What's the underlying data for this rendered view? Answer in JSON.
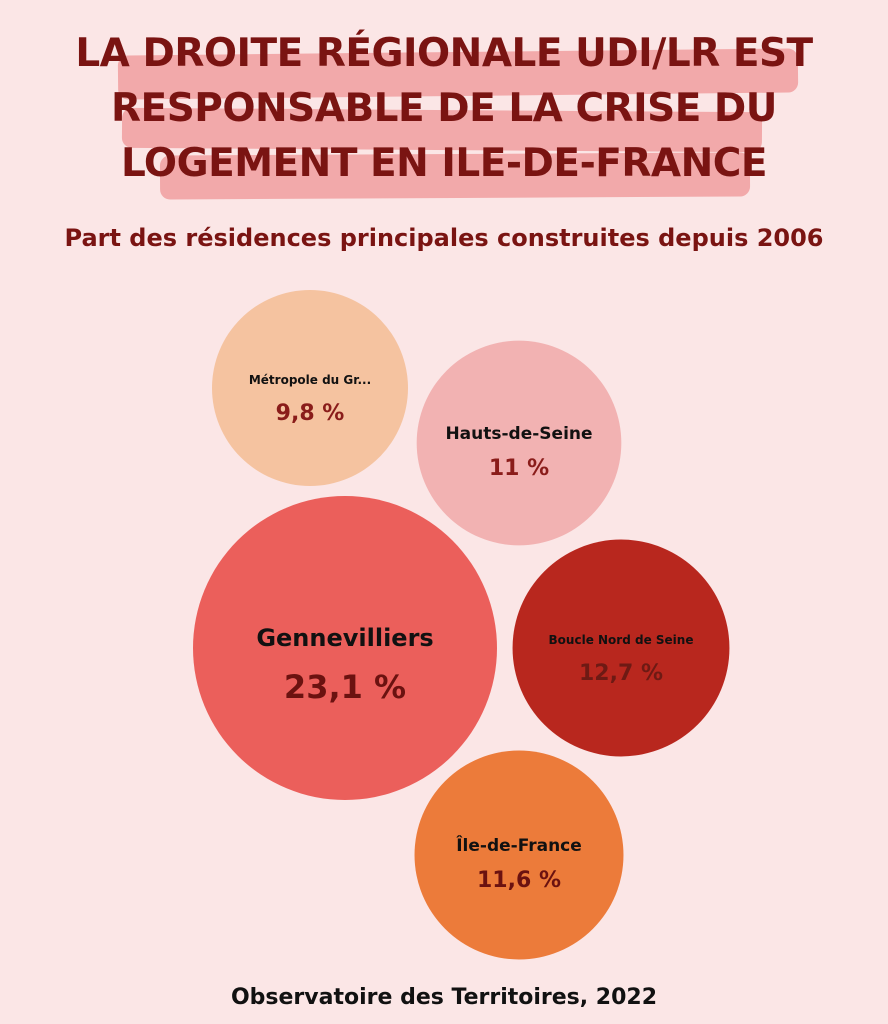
{
  "chart_data": {
    "type": "bubble",
    "title": "LA DROITE RÉGIONALE UDI/LR EST RESPONSABLE DE LA CRISE DU LOGEMENT EN ILE-DE-FRANCE",
    "title_lines": [
      "LA DROITE RÉGIONALE UDI/LR EST",
      "RESPONSABLE DE LA CRISE DU",
      "LOGEMENT EN ILE-DE-FRANCE"
    ],
    "subtitle": "Part des résidences principales construites depuis 2006",
    "unit": "%",
    "bubbles": [
      {
        "label": "Métropole du Gr...",
        "value": 9.8,
        "display": "9,8 %",
        "color": "#f5c3a0",
        "text_color": "#111111",
        "value_color": "#8a1c1a"
      },
      {
        "label": "Hauts-de-Seine",
        "value": 11,
        "display": "11 %",
        "color": "#f2b2b2",
        "text_color": "#111111",
        "value_color": "#8a1c1a"
      },
      {
        "label": "Gennevilliers",
        "value": 23.1,
        "display": "23,1 %",
        "color": "#eb5f5b",
        "text_color": "#111111",
        "value_color": "#6b1210"
      },
      {
        "label": "Boucle Nord de Seine",
        "value": 12.7,
        "display": "12,7 %",
        "color": "#b8271e",
        "text_color": "#111111",
        "value_color": "#6e1a14"
      },
      {
        "label": "Île-de-France",
        "value": 11.6,
        "display": "11,6 %",
        "color": "#ec7b3a",
        "text_color": "#111111",
        "value_color": "#6b1210"
      }
    ]
  },
  "source": "Observatoire des Territoires, 2022"
}
